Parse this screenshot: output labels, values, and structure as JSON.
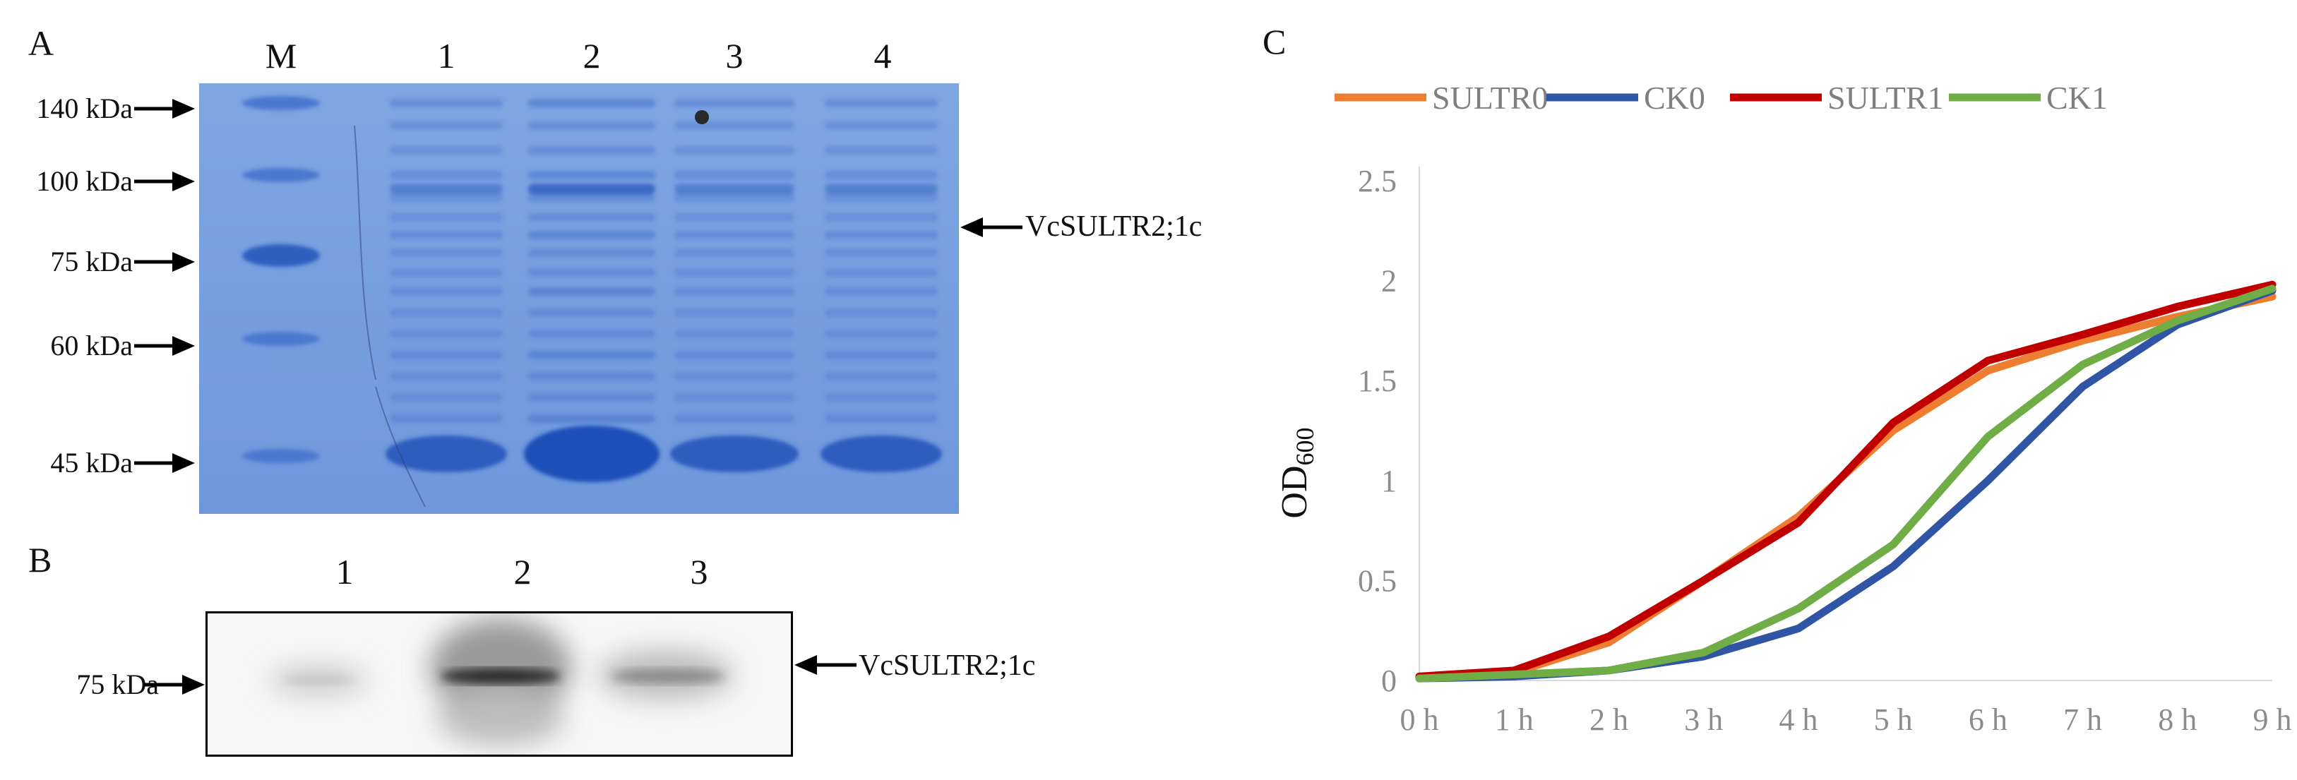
{
  "panel_a": {
    "letter": "A",
    "lanes": [
      "M",
      "1",
      "2",
      "3",
      "4"
    ],
    "markers": [
      "140 kDa",
      "100 kDa",
      "75 kDa",
      "60 kDa",
      "45 kDa"
    ],
    "target_label": "VcSULTR2;1c",
    "gel_color": "#6a96dc"
  },
  "panel_b": {
    "letter": "B",
    "lanes": [
      "1",
      "2",
      "3"
    ],
    "marker": "75 kDa",
    "target_label": "VcSULTR2;1c"
  },
  "panel_c": {
    "letter": "C",
    "chart_data": {
      "type": "line",
      "x": [
        "0 h",
        "1 h",
        "2 h",
        "3 h",
        "4 h",
        "5 h",
        "6 h",
        "7 h",
        "8 h",
        "9 h"
      ],
      "ylabel": "OD",
      "ylabel_subscript": "600",
      "ylim": [
        0,
        2.5
      ],
      "yticks": [
        "0",
        "0.5",
        "1",
        "1.5",
        "2",
        "2.5"
      ],
      "legend_position": "top",
      "grid": false,
      "series": [
        {
          "name": "SULTR0",
          "color": "#ed7d31",
          "values": [
            0.02,
            0.04,
            0.19,
            0.5,
            0.82,
            1.25,
            1.55,
            1.7,
            1.82,
            1.92
          ]
        },
        {
          "name": "CK0",
          "color": "#2f55a4",
          "values": [
            0.01,
            0.02,
            0.05,
            0.12,
            0.26,
            0.57,
            1.0,
            1.47,
            1.78,
            1.95
          ]
        },
        {
          "name": "SULTR1",
          "color": "#c00000",
          "values": [
            0.02,
            0.05,
            0.22,
            0.5,
            0.79,
            1.29,
            1.6,
            1.73,
            1.87,
            1.98
          ]
        },
        {
          "name": "CK1",
          "color": "#70ad47",
          "values": [
            0.01,
            0.03,
            0.05,
            0.14,
            0.36,
            0.68,
            1.22,
            1.58,
            1.8,
            1.96
          ]
        }
      ]
    }
  }
}
